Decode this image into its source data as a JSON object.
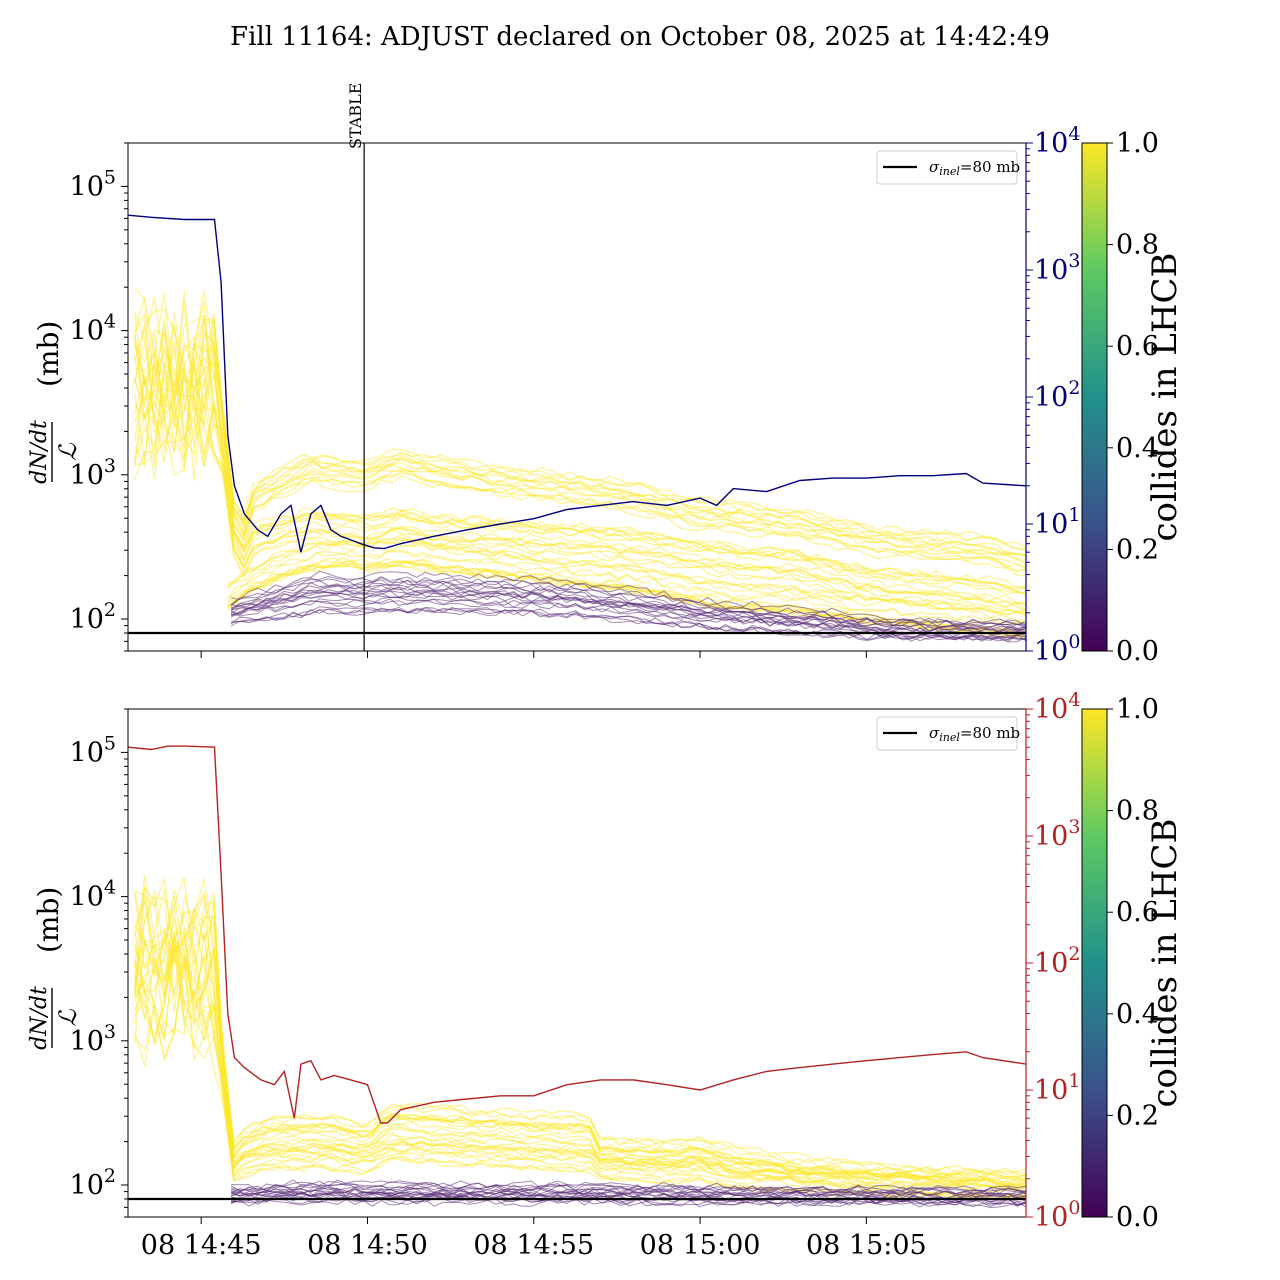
{
  "figure": {
    "title": "Fill 11164: ADJUST declared on October 08, 2025 at 14:42:49"
  },
  "colors": {
    "top_line": "#00007f",
    "bottom_line": "#b22222",
    "axis": "#000000",
    "viridis": [
      "#440154",
      "#3b528b",
      "#21918c",
      "#5ec962",
      "#fde725"
    ]
  },
  "chart_data": [
    {
      "type": "line",
      "panel": "top",
      "title": "",
      "xlabel": "",
      "ylabel": "dN/dt / ℒ (mb)",
      "ylabel_parts": {
        "numerator": "dN/dt",
        "denominator": "ℒ",
        "unit": "(mb)"
      },
      "y_scale": "log",
      "ylim": [
        60,
        200000
      ],
      "y_ticks": [
        {
          "value": 100,
          "base": "10",
          "exp": "2"
        },
        {
          "value": 1000,
          "base": "10",
          "exp": "3"
        },
        {
          "value": 10000,
          "base": "10",
          "exp": "4"
        },
        {
          "value": 100000,
          "base": "10",
          "exp": "5"
        }
      ],
      "x_unit": "minutes after 08 14:40",
      "xlim": [
        2.8,
        29.8
      ],
      "x_tick_labels_visible": false,
      "vline": {
        "x": 9.9,
        "label": "STABLE"
      },
      "hline": {
        "y": 80,
        "legend": "σinel=80 mb"
      },
      "legend": {
        "placement": "top-right",
        "entries": [
          {
            "label_main": "σ",
            "label_sub": "inel",
            "label_tail": "=80 mb"
          }
        ]
      },
      "secondary_axis": {
        "scale": "log",
        "ylim": [
          1,
          10000
        ],
        "color": "#00007f",
        "ticks": [
          {
            "value": 1,
            "base": "10",
            "exp": "0"
          },
          {
            "value": 10,
            "base": "10",
            "exp": "1"
          },
          {
            "value": 100,
            "base": "10",
            "exp": "2"
          },
          {
            "value": 1000,
            "base": "10",
            "exp": "3"
          },
          {
            "value": 10000,
            "base": "10",
            "exp": "4"
          }
        ]
      },
      "secondary_series": {
        "x": [
          2.8,
          3.5,
          4.5,
          5.4,
          5.6,
          5.8,
          6.0,
          6.3,
          6.7,
          7.0,
          7.4,
          7.7,
          8.0,
          8.3,
          8.6,
          8.9,
          9.2,
          9.5,
          9.8,
          10.2,
          10.5,
          11.0,
          12.0,
          13.0,
          14.0,
          15.0,
          16.0,
          17.0,
          18.0,
          19.0,
          20.0,
          20.5,
          21.0,
          22.0,
          23.0,
          24.0,
          25.0,
          26.0,
          27.0,
          28.0,
          28.5,
          29.8
        ],
        "values": [
          2700,
          2600,
          2500,
          2500,
          800,
          50,
          20,
          12,
          9,
          8,
          12,
          14,
          6,
          12,
          14,
          9,
          8,
          7.5,
          7,
          6.5,
          6.4,
          7,
          8,
          9,
          10,
          11,
          13,
          14,
          15,
          14,
          16,
          14,
          19,
          18,
          22,
          23,
          23,
          24,
          24,
          25,
          21,
          20
        ]
      },
      "color_scale": {
        "label": "collides in LHCB",
        "min": 0.0,
        "max": 1.0,
        "ticks": [
          "0.0",
          "0.2",
          "0.4",
          "0.6",
          "0.8",
          "1.0"
        ]
      },
      "bands": [
        {
          "value": 1,
          "x": [
            3.0,
            5.4,
            5.6,
            6.1,
            6.6,
            7.5,
            8.3,
            9.3,
            10.0,
            11.0,
            12.0,
            14.0,
            16.0,
            18.0,
            19.5,
            21.0,
            23.0,
            24.0,
            25.0,
            27.0,
            28.5,
            29.8
          ],
          "y": [
            6000,
            6000,
            3000,
            300,
            700,
            900,
            1100,
            1000,
            1000,
            1200,
            1050,
            900,
            800,
            700,
            550,
            500,
            450,
            400,
            350,
            320,
            300,
            250
          ]
        },
        {
          "value": 1,
          "x": [
            3.0,
            5.4,
            5.6,
            6.1,
            6.6,
            7.5,
            8.3,
            9.3,
            10.0,
            11.0,
            12.0,
            14.0,
            16.0,
            18.0,
            19.5,
            21.0,
            23.0,
            24.0,
            25.0,
            27.0,
            28.5,
            29.8
          ],
          "y": [
            2500,
            2500,
            1500,
            200,
            350,
            400,
            450,
            420,
            400,
            450,
            400,
            380,
            350,
            320,
            280,
            250,
            230,
            200,
            180,
            160,
            150,
            130
          ]
        },
        {
          "value": 1,
          "x": [
            5.8,
            6.6,
            7.5,
            8.3,
            9.3,
            10.0,
            11.0,
            12.0,
            14.0,
            16.0,
            18.0,
            19.5,
            21.0,
            23.0,
            24.0,
            25.0,
            27.0,
            28.5,
            29.8
          ],
          "y": [
            150,
            200,
            250,
            280,
            300,
            280,
            300,
            280,
            250,
            220,
            200,
            170,
            150,
            140,
            130,
            120,
            110,
            100,
            95
          ]
        },
        {
          "value": 0,
          "x": [
            5.9,
            6.3,
            7.0,
            7.8,
            8.6,
            9.5,
            10.5,
            12.0,
            14.0,
            16.0,
            17.0,
            18.0,
            19.0,
            20.0,
            21.0,
            22.0,
            23.0,
            24.0,
            25.0,
            26.0,
            28.0,
            29.8
          ],
          "y": [
            120,
            130,
            140,
            160,
            180,
            170,
            180,
            175,
            170,
            160,
            150,
            140,
            130,
            120,
            115,
            110,
            105,
            100,
            92,
            88,
            86,
            84
          ]
        },
        {
          "value": 0,
          "x": [
            5.9,
            6.3,
            7.0,
            7.8,
            8.6,
            9.5,
            10.5,
            12.0,
            14.0,
            16.0,
            17.0,
            18.0,
            19.0,
            20.0,
            21.0,
            22.0,
            23.0,
            24.0,
            25.0,
            26.0,
            28.0,
            29.8
          ],
          "y": [
            105,
            110,
            115,
            120,
            130,
            125,
            130,
            128,
            125,
            120,
            115,
            110,
            105,
            100,
            96,
            93,
            90,
            88,
            85,
            84,
            83,
            82
          ]
        }
      ]
    },
    {
      "type": "line",
      "panel": "bottom",
      "title": "",
      "xlabel": "",
      "ylabel": "dN/dt / ℒ (mb)",
      "ylabel_parts": {
        "numerator": "dN/dt",
        "denominator": "ℒ",
        "unit": "(mb)"
      },
      "y_scale": "log",
      "ylim": [
        60,
        200000
      ],
      "y_ticks": [
        {
          "value": 100,
          "base": "10",
          "exp": "2"
        },
        {
          "value": 1000,
          "base": "10",
          "exp": "3"
        },
        {
          "value": 10000,
          "base": "10",
          "exp": "4"
        },
        {
          "value": 100000,
          "base": "10",
          "exp": "5"
        }
      ],
      "x_unit": "minutes after 08 14:40",
      "xlim": [
        2.8,
        29.8
      ],
      "x_tick_labels_visible": true,
      "x_ticks": [
        {
          "value": 5,
          "label": "08 14:45"
        },
        {
          "value": 10,
          "label": "08 14:50"
        },
        {
          "value": 15,
          "label": "08 14:55"
        },
        {
          "value": 20,
          "label": "08 15:00"
        },
        {
          "value": 25,
          "label": "08 15:05"
        }
      ],
      "hline": {
        "y": 80,
        "legend": "σinel=80 mb"
      },
      "legend": {
        "placement": "top-right",
        "entries": [
          {
            "label_main": "σ",
            "label_sub": "inel",
            "label_tail": "=80 mb"
          }
        ]
      },
      "secondary_axis": {
        "scale": "log",
        "ylim": [
          1,
          10000
        ],
        "color": "#b22222",
        "ticks": [
          {
            "value": 1,
            "base": "10",
            "exp": "0"
          },
          {
            "value": 10,
            "base": "10",
            "exp": "1"
          },
          {
            "value": 100,
            "base": "10",
            "exp": "2"
          },
          {
            "value": 1000,
            "base": "10",
            "exp": "3"
          },
          {
            "value": 10000,
            "base": "10",
            "exp": "4"
          }
        ]
      },
      "secondary_series": {
        "x": [
          2.8,
          3.5,
          4.0,
          4.5,
          5.4,
          5.6,
          5.8,
          6.0,
          6.3,
          6.8,
          7.2,
          7.5,
          7.8,
          8.0,
          8.3,
          8.6,
          9.0,
          9.5,
          10.0,
          10.4,
          10.6,
          11.0,
          12.0,
          13.0,
          14.0,
          15.0,
          16.0,
          17.0,
          18.0,
          19.0,
          20.0,
          21.0,
          22.0,
          23.0,
          24.0,
          25.0,
          26.0,
          27.0,
          28.0,
          28.5,
          29.8
        ],
        "values": [
          5000,
          4800,
          5100,
          5100,
          5000,
          500,
          40,
          18,
          15,
          12,
          11,
          14,
          6,
          16,
          17,
          12,
          13,
          12,
          11,
          5.5,
          5.5,
          7,
          8,
          8.5,
          9,
          9,
          11,
          12,
          12,
          11,
          10,
          12,
          14,
          15,
          16,
          17,
          18,
          19,
          20,
          18,
          16
        ]
      },
      "color_scale": {
        "label": "collides in LHCB",
        "min": 0.0,
        "max": 1.0,
        "ticks": [
          "0.0",
          "0.2",
          "0.4",
          "0.6",
          "0.8",
          "1.0"
        ]
      },
      "bands": [
        {
          "value": 1,
          "x": [
            3.0,
            5.4,
            5.6,
            5.8,
            6.2,
            7.0,
            8.0,
            9.0,
            10.0,
            10.6,
            11.0,
            13.0,
            15.0,
            16.7,
            17.0,
            19.0,
            20.0,
            21.0,
            23.0,
            25.0,
            27.0,
            29.8
          ],
          "y": [
            5000,
            5000,
            2000,
            150,
            200,
            250,
            250,
            250,
            220,
            300,
            300,
            280,
            260,
            250,
            180,
            170,
            180,
            150,
            130,
            120,
            110,
            100
          ]
        },
        {
          "value": 1,
          "x": [
            3.0,
            5.4,
            5.6,
            5.8,
            6.2,
            7.0,
            8.0,
            9.0,
            10.0,
            10.6,
            11.0,
            13.0,
            15.0,
            16.7,
            17.0,
            19.0,
            20.0,
            21.0,
            23.0,
            25.0,
            27.0,
            29.8
          ],
          "y": [
            2000,
            2000,
            1000,
            110,
            130,
            150,
            150,
            150,
            140,
            170,
            170,
            160,
            150,
            145,
            125,
            120,
            125,
            110,
            105,
            100,
            98,
            95
          ]
        },
        {
          "value": 0,
          "x": [
            5.9,
            6.3,
            7.0,
            8.0,
            9.0,
            10.0,
            11.0,
            13.0,
            15.0,
            17.0,
            19.0,
            21.0,
            23.0,
            25.0,
            27.0,
            29.8
          ],
          "y": [
            90,
            88,
            90,
            95,
            94,
            92,
            93,
            93,
            92,
            92,
            90,
            89,
            88,
            87,
            86,
            85
          ]
        },
        {
          "value": 0,
          "x": [
            5.9,
            6.3,
            7.0,
            8.0,
            9.0,
            10.0,
            11.0,
            13.0,
            15.0,
            17.0,
            19.0,
            21.0,
            23.0,
            25.0,
            27.0,
            29.8
          ],
          "y": [
            84,
            84,
            85,
            86,
            86,
            85,
            85,
            85,
            85,
            85,
            84,
            84,
            83,
            83,
            83,
            82
          ]
        }
      ]
    }
  ]
}
